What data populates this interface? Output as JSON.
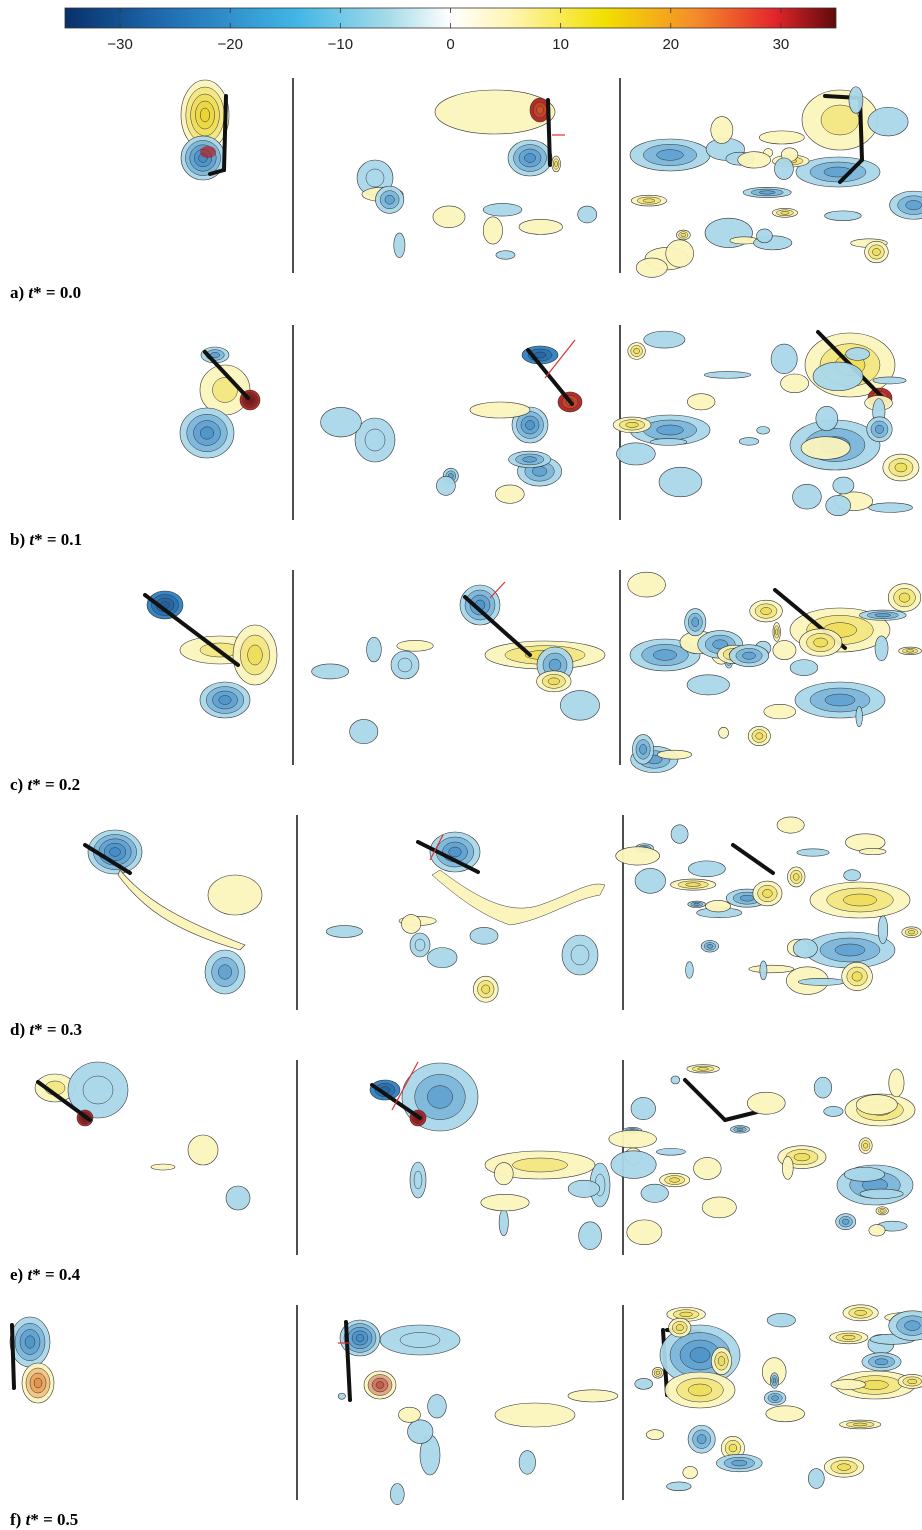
{
  "colorbar": {
    "min": -35,
    "max": 35,
    "ticks": [
      -30,
      -20,
      -10,
      0,
      10,
      20,
      30
    ],
    "tick_labels": [
      "−30",
      "−20",
      "−10",
      "0",
      "10",
      "20",
      "30"
    ],
    "colors": {
      "neg_strong": "#08306b",
      "neg_mid": "#2b8cbe",
      "neg_light": "#9ecae1",
      "neutral": "#ffffff",
      "pos_light": "#fff7bc",
      "pos_mid": "#f2d600",
      "pos_warm": "#f46d43",
      "pos_strong": "#67001f"
    }
  },
  "colors": {
    "fill_blue": "#a9d7ea",
    "fill_blue_dark": "#2d7fc0",
    "fill_yellow": "#fbf4bd",
    "fill_yellow_dark": "#e9cf16",
    "fill_red": "#b32020",
    "contour": "#333333",
    "plate": "#111111",
    "arrow": "#e03030",
    "divider": "#222222"
  },
  "panels": [
    {
      "prefix": "a) ",
      "var": "t",
      "suffix": "* = 0.0"
    },
    {
      "prefix": "b) ",
      "var": "t",
      "suffix": "* = 0.1"
    },
    {
      "prefix": "c) ",
      "var": "t",
      "suffix": "* = 0.2"
    },
    {
      "prefix": "d) ",
      "var": "t",
      "suffix": "* = 0.3"
    },
    {
      "prefix": "e) ",
      "var": "t",
      "suffix": "* = 0.4"
    },
    {
      "prefix": "f) ",
      "var": "t",
      "suffix": "* = 0.5"
    }
  ]
}
